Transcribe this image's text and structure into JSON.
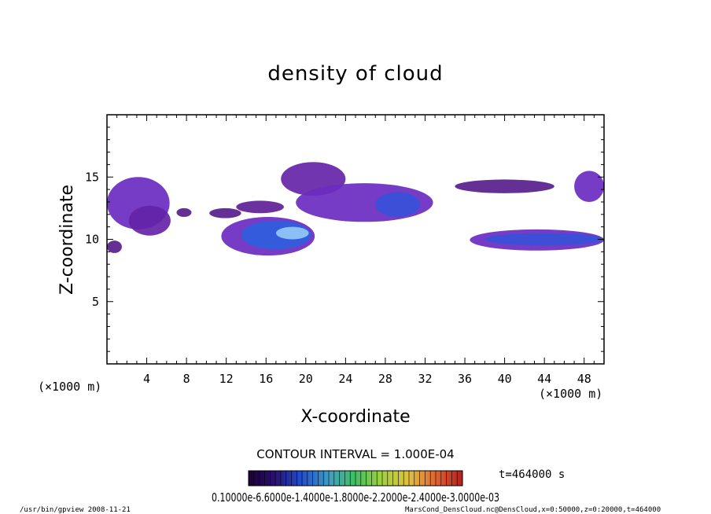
{
  "chart_data": {
    "type": "heatmap",
    "title": "density of cloud",
    "xlabel": "X-coordinate",
    "ylabel": "Z-coordinate",
    "x_unit_left": "(×1000 m)",
    "x_unit_right": "(×1000 m)",
    "xlim": [
      0,
      50
    ],
    "ylim": [
      0,
      20
    ],
    "x_ticks": [
      4,
      8,
      12,
      16,
      20,
      24,
      28,
      32,
      36,
      40,
      44,
      48
    ],
    "y_ticks": [
      5,
      10,
      15
    ],
    "contour_interval": "CONTOUR INTERVAL = 1.000E-04",
    "time_label": "t=464000 s",
    "colorbar_labels": "0.10000e-6.6000e-1.4000e-1.8000e-2.2000e-2.4000e-3.0000e-03",
    "colorbar_min": 0.0001,
    "colorbar_max": 0.0007,
    "footer_left": "/usr/bin/gpview   2008-11-21",
    "footer_right": "MarsCond_DensCloud.nc@DensCloud,x=0:50000,z=0:20000,t=464000",
    "cloud_regions": [
      {
        "x0": 0,
        "x1": 6.3,
        "z0": 10.8,
        "z1": 15.0,
        "level": 0.0002
      },
      {
        "x0": 0,
        "x1": 1.5,
        "z0": 8.9,
        "z1": 9.9,
        "level": 0.0001
      },
      {
        "x0": 2.2,
        "x1": 6.4,
        "z0": 10.3,
        "z1": 12.7,
        "level": 0.00015
      },
      {
        "x0": 7.0,
        "x1": 8.5,
        "z0": 11.8,
        "z1": 12.5,
        "level": 0.0001
      },
      {
        "x0": 10.3,
        "x1": 13.5,
        "z0": 11.7,
        "z1": 12.5,
        "level": 0.0001
      },
      {
        "x0": 13.0,
        "x1": 17.8,
        "z0": 12.1,
        "z1": 13.1,
        "level": 0.00012
      },
      {
        "x0": 11.5,
        "x1": 20.9,
        "z0": 8.7,
        "z1": 11.8,
        "level": 0.0002
      },
      {
        "x0": 13.5,
        "x1": 20.5,
        "z0": 9.2,
        "z1": 11.5,
        "level": 0.0004
      },
      {
        "x0": 17.0,
        "x1": 20.3,
        "z0": 10.0,
        "z1": 11.0,
        "level": 0.00065
      },
      {
        "x0": 17.5,
        "x1": 24.0,
        "z0": 13.5,
        "z1": 16.2,
        "level": 0.00015
      },
      {
        "x0": 19.0,
        "x1": 32.8,
        "z0": 11.4,
        "z1": 14.5,
        "level": 0.0002
      },
      {
        "x0": 27.0,
        "x1": 31.5,
        "z0": 11.8,
        "z1": 13.8,
        "level": 0.00035
      },
      {
        "x0": 35.0,
        "x1": 45.0,
        "z0": 13.7,
        "z1": 14.8,
        "level": 0.0001
      },
      {
        "x0": 36.5,
        "x1": 50.0,
        "z0": 9.1,
        "z1": 10.8,
        "level": 0.0002
      },
      {
        "x0": 38.0,
        "x1": 50.0,
        "z0": 9.5,
        "z1": 10.5,
        "level": 0.00035
      },
      {
        "x0": 47.0,
        "x1": 50.0,
        "z0": 13.0,
        "z1": 15.5,
        "level": 0.0002
      }
    ]
  }
}
